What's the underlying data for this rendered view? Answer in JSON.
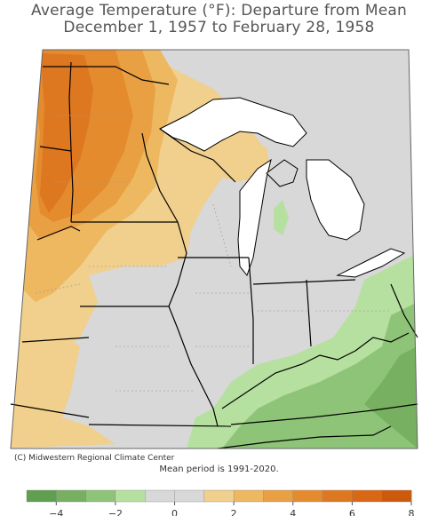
{
  "title_line1": "Average Temperature (°F): Departure from Mean",
  "title_line2": "December 1, 1957 to February 28, 1958",
  "credit": "(C) Midwestern Regional Climate Center",
  "mean_note": "Mean period is 1991-2020.",
  "legend": {
    "ticks": [
      "−4",
      "−2",
      "0",
      "2",
      "4",
      "6",
      "8"
    ],
    "bins": [
      {
        "from": -5,
        "to": -4,
        "color": "#5f9f4f"
      },
      {
        "from": -4,
        "to": -3,
        "color": "#76b060"
      },
      {
        "from": -3,
        "to": -2,
        "color": "#8ec478"
      },
      {
        "from": -2,
        "to": -1,
        "color": "#b6e0a0"
      },
      {
        "from": -1,
        "to": 0,
        "color": "#d8d8d8"
      },
      {
        "from": 0,
        "to": 1,
        "color": "#d8d8d8"
      },
      {
        "from": 1,
        "to": 2,
        "color": "#f1cf8c"
      },
      {
        "from": 2,
        "to": 3,
        "color": "#edb860"
      },
      {
        "from": 3,
        "to": 4,
        "color": "#e9a043"
      },
      {
        "from": 4,
        "to": 5,
        "color": "#e48b2e"
      },
      {
        "from": 5,
        "to": 6,
        "color": "#de7820"
      },
      {
        "from": 6,
        "to": 7,
        "color": "#d96714"
      },
      {
        "from": 7,
        "to": 8,
        "color": "#cc5a0c"
      }
    ]
  },
  "colors": {
    "neutral": "#d8d8d8",
    "lake": "#ffffff",
    "border": "#000000"
  }
}
